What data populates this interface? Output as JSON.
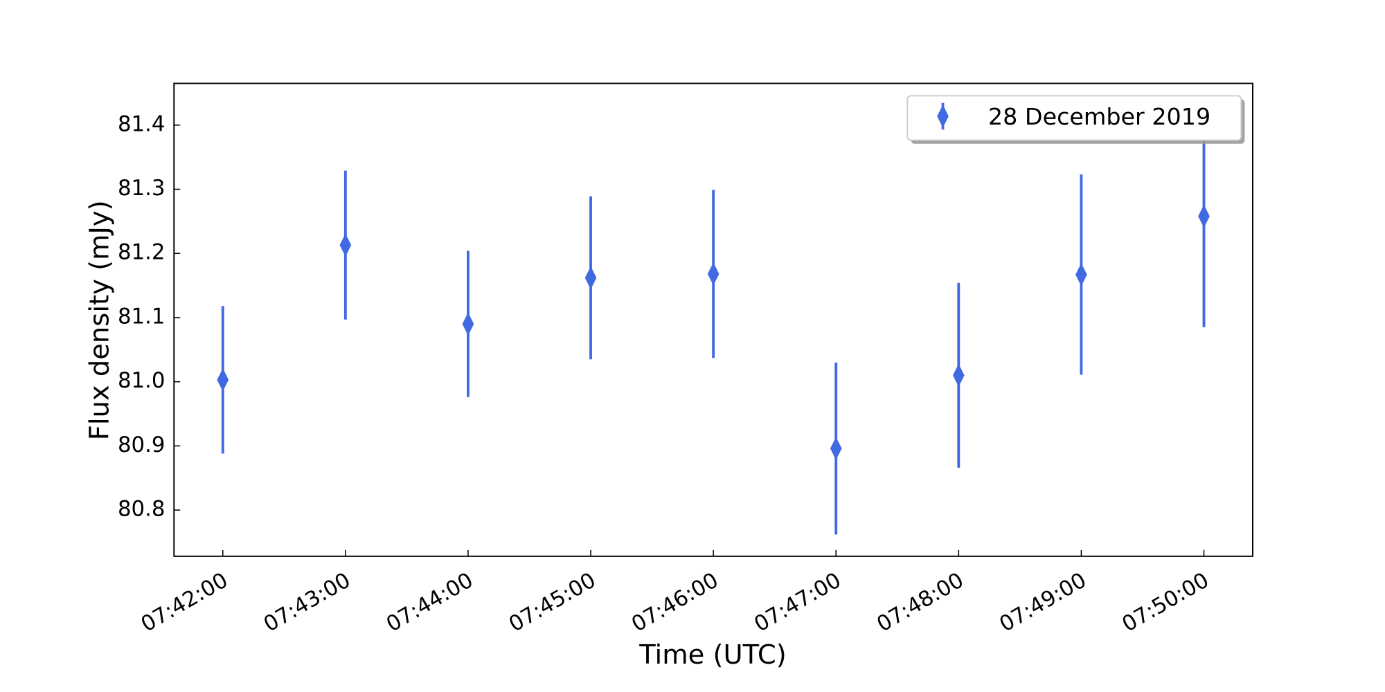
{
  "chart_data": {
    "type": "errorbar",
    "x_label": "Time (UTC)",
    "y_label": "Flux density (mJy)",
    "categories": [
      "07:42:00",
      "07:43:00",
      "07:44:00",
      "07:45:00",
      "07:46:00",
      "07:47:00",
      "07:48:00",
      "07:49:00",
      "07:50:00"
    ],
    "series": [
      {
        "name": "28 December 2019",
        "color": "#4169e1",
        "values": [
          81.003,
          81.213,
          81.09,
          81.162,
          81.168,
          80.896,
          81.01,
          81.167,
          81.258
        ],
        "errors": [
          0.115,
          0.116,
          0.114,
          0.127,
          0.131,
          0.134,
          0.144,
          0.156,
          0.173
        ]
      }
    ],
    "ylim": [
      80.728,
      81.465
    ],
    "yticks": [
      80.8,
      80.9,
      {
        "value": 81.0,
        "label": "81.0"
      },
      81.1,
      81.2,
      81.3,
      81.4
    ],
    "legend": "upper right"
  }
}
